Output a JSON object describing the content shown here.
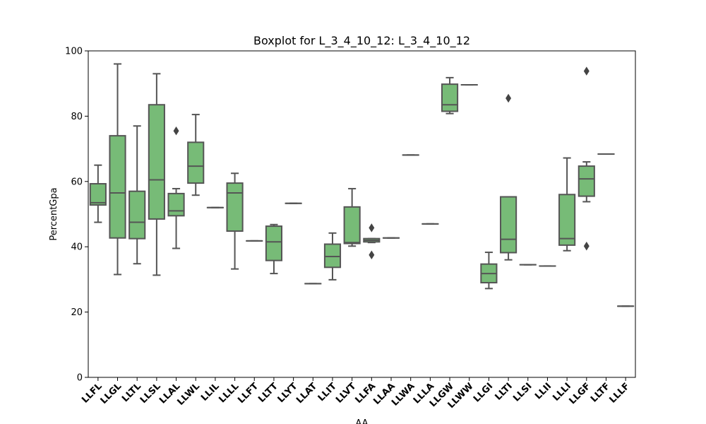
{
  "chart_data": {
    "type": "boxplot",
    "title": "Boxplot for L_3_4_10_12: L_3_4_10_12",
    "xlabel": "AA",
    "ylabel": "PercentGpa",
    "ylim": [
      0,
      100
    ],
    "yticks": [
      0,
      20,
      40,
      60,
      80,
      100
    ],
    "grid": false,
    "box_color": "#77bb77",
    "line_color": "#555555",
    "boxes": [
      {
        "category": "LLFL",
        "whislo": 47.5,
        "q1": 52.8,
        "med": 53.5,
        "q3": 59.3,
        "whishi": 65.0,
        "fliers": []
      },
      {
        "category": "LLGL",
        "whislo": 31.5,
        "q1": 42.7,
        "med": 56.5,
        "q3": 74.0,
        "whishi": 96.0,
        "fliers": []
      },
      {
        "category": "LLTL",
        "whislo": 34.8,
        "q1": 42.5,
        "med": 47.5,
        "q3": 57.0,
        "whishi": 77.0,
        "fliers": []
      },
      {
        "category": "LLSL",
        "whislo": 31.3,
        "q1": 48.5,
        "med": 60.5,
        "q3": 83.5,
        "whishi": 93.0,
        "fliers": []
      },
      {
        "category": "LLAL",
        "whislo": 39.5,
        "q1": 49.5,
        "med": 51.0,
        "q3": 56.3,
        "whishi": 57.8,
        "fliers": [
          75.5
        ]
      },
      {
        "category": "LLWL",
        "whislo": 55.8,
        "q1": 59.5,
        "med": 64.7,
        "q3": 72.0,
        "whishi": 80.5,
        "fliers": []
      },
      {
        "category": "LLIL",
        "whislo": 52.0,
        "q1": 52.0,
        "med": 52.0,
        "q3": 52.0,
        "whishi": 52.0,
        "fliers": []
      },
      {
        "category": "LLLL",
        "whislo": 33.2,
        "q1": 44.8,
        "med": 56.5,
        "q3": 59.5,
        "whishi": 62.5,
        "fliers": []
      },
      {
        "category": "LLFT",
        "whislo": 41.8,
        "q1": 41.8,
        "med": 41.8,
        "q3": 41.8,
        "whishi": 41.8,
        "fliers": []
      },
      {
        "category": "LLTT",
        "whislo": 31.8,
        "q1": 35.8,
        "med": 41.5,
        "q3": 46.3,
        "whishi": 46.8,
        "fliers": []
      },
      {
        "category": "LLYT",
        "whislo": 53.3,
        "q1": 53.3,
        "med": 53.3,
        "q3": 53.3,
        "whishi": 53.3,
        "fliers": []
      },
      {
        "category": "LLAT",
        "whislo": 28.7,
        "q1": 28.7,
        "med": 28.7,
        "q3": 28.7,
        "whishi": 28.7,
        "fliers": []
      },
      {
        "category": "LLIT",
        "whislo": 29.9,
        "q1": 33.7,
        "med": 37.0,
        "q3": 40.8,
        "whishi": 44.2,
        "fliers": []
      },
      {
        "category": "LLVT",
        "whislo": 40.2,
        "q1": 41.0,
        "med": 41.3,
        "q3": 52.2,
        "whishi": 57.8,
        "fliers": []
      },
      {
        "category": "LLFA",
        "whislo": 41.3,
        "q1": 41.5,
        "med": 42.0,
        "q3": 42.5,
        "whishi": 42.5,
        "fliers": [
          37.5,
          45.8
        ]
      },
      {
        "category": "LLAA",
        "whislo": 42.7,
        "q1": 42.7,
        "med": 42.7,
        "q3": 42.7,
        "whishi": 42.7,
        "fliers": []
      },
      {
        "category": "LLWA",
        "whislo": 68.1,
        "q1": 68.1,
        "med": 68.1,
        "q3": 68.1,
        "whishi": 68.1,
        "fliers": []
      },
      {
        "category": "LLLA",
        "whislo": 47.0,
        "q1": 47.0,
        "med": 47.0,
        "q3": 47.0,
        "whishi": 47.0,
        "fliers": []
      },
      {
        "category": "LLGW",
        "whislo": 80.8,
        "q1": 81.5,
        "med": 83.5,
        "q3": 89.8,
        "whishi": 91.8,
        "fliers": []
      },
      {
        "category": "LLWW",
        "whislo": 89.6,
        "q1": 89.6,
        "med": 89.6,
        "q3": 89.6,
        "whishi": 89.6,
        "fliers": []
      },
      {
        "category": "LLGI",
        "whislo": 27.2,
        "q1": 29.0,
        "med": 31.8,
        "q3": 34.7,
        "whishi": 38.3,
        "fliers": []
      },
      {
        "category": "LLTI",
        "whislo": 36.0,
        "q1": 38.2,
        "med": 42.3,
        "q3": 55.3,
        "whishi": 55.3,
        "fliers": [
          85.5
        ]
      },
      {
        "category": "LLSI",
        "whislo": 34.5,
        "q1": 34.5,
        "med": 34.5,
        "q3": 34.5,
        "whishi": 34.5,
        "fliers": []
      },
      {
        "category": "LLII",
        "whislo": 34.1,
        "q1": 34.1,
        "med": 34.1,
        "q3": 34.1,
        "whishi": 34.1,
        "fliers": []
      },
      {
        "category": "LLLI",
        "whislo": 38.8,
        "q1": 40.5,
        "med": 42.5,
        "q3": 56.0,
        "whishi": 67.2,
        "fliers": []
      },
      {
        "category": "LLGF",
        "whislo": 53.8,
        "q1": 55.5,
        "med": 60.8,
        "q3": 64.7,
        "whishi": 66.0,
        "fliers": [
          40.2,
          93.8
        ]
      },
      {
        "category": "LLTF",
        "whislo": 68.4,
        "q1": 68.4,
        "med": 68.4,
        "q3": 68.4,
        "whishi": 68.4,
        "fliers": []
      },
      {
        "category": "LLLF",
        "whislo": 21.8,
        "q1": 21.8,
        "med": 21.8,
        "q3": 21.8,
        "whishi": 21.8,
        "fliers": []
      }
    ]
  }
}
